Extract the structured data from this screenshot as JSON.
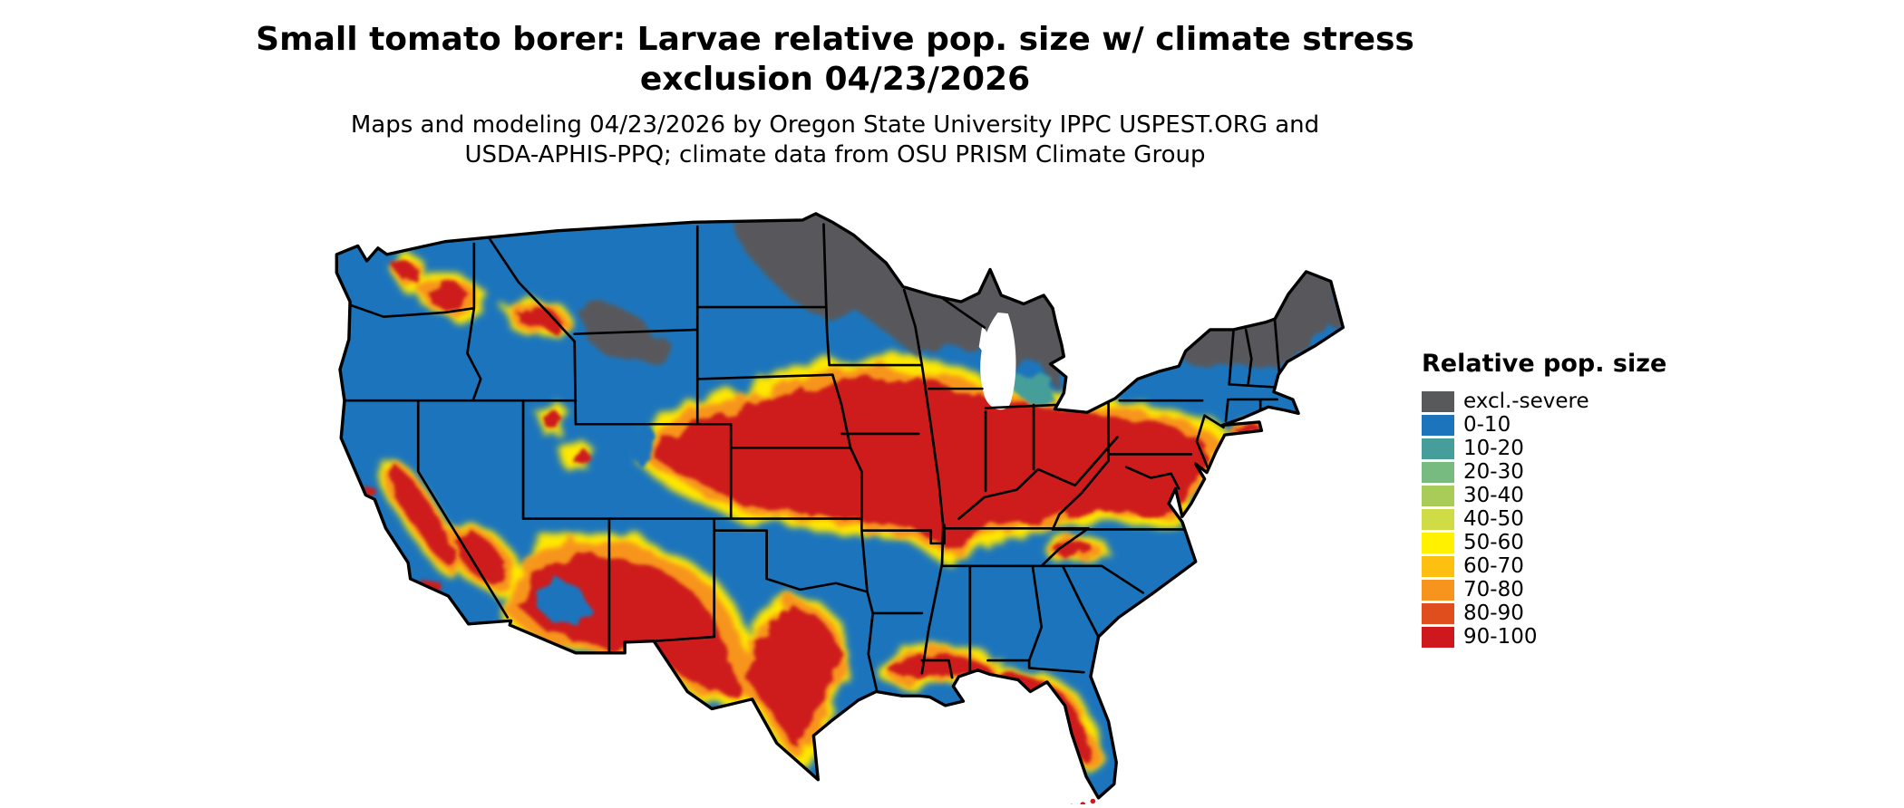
{
  "title": {
    "line1": "Small tomato borer: Larvae relative pop. size w/ climate stress",
    "line2": "exclusion 04/23/2026"
  },
  "subtitle": {
    "line1": "Maps and modeling 04/23/2026 by Oregon State University IPPC USPEST.ORG and",
    "line2": "USDA-APHIS-PPQ; climate data from OSU PRISM Climate Group"
  },
  "legend": {
    "title": "Relative pop. size",
    "items": [
      {
        "label": "excl.-severe",
        "color": "#58595B"
      },
      {
        "label": "0-10",
        "color": "#1C75BC"
      },
      {
        "label": "10-20",
        "color": "#459E9A"
      },
      {
        "label": "20-30",
        "color": "#77BB80"
      },
      {
        "label": "30-40",
        "color": "#A8CC57"
      },
      {
        "label": "40-50",
        "color": "#CFDC45"
      },
      {
        "label": "50-60",
        "color": "#FFF100"
      },
      {
        "label": "60-70",
        "color": "#FDC010"
      },
      {
        "label": "70-80",
        "color": "#F7941E"
      },
      {
        "label": "80-90",
        "color": "#E04E1D"
      },
      {
        "label": "90-100",
        "color": "#CE181E"
      }
    ]
  },
  "map": {
    "name": "Continental United States raster map of larvae relative population size",
    "colors": {
      "excluded_gray": "#58595B",
      "low_blue": "#1C75BC",
      "teal": "#459E9A",
      "yellow": "#FFE800",
      "orange": "#F7941E",
      "red": "#CE1A1A",
      "water_white": "#FFFFFF",
      "border_black": "#000000"
    }
  }
}
